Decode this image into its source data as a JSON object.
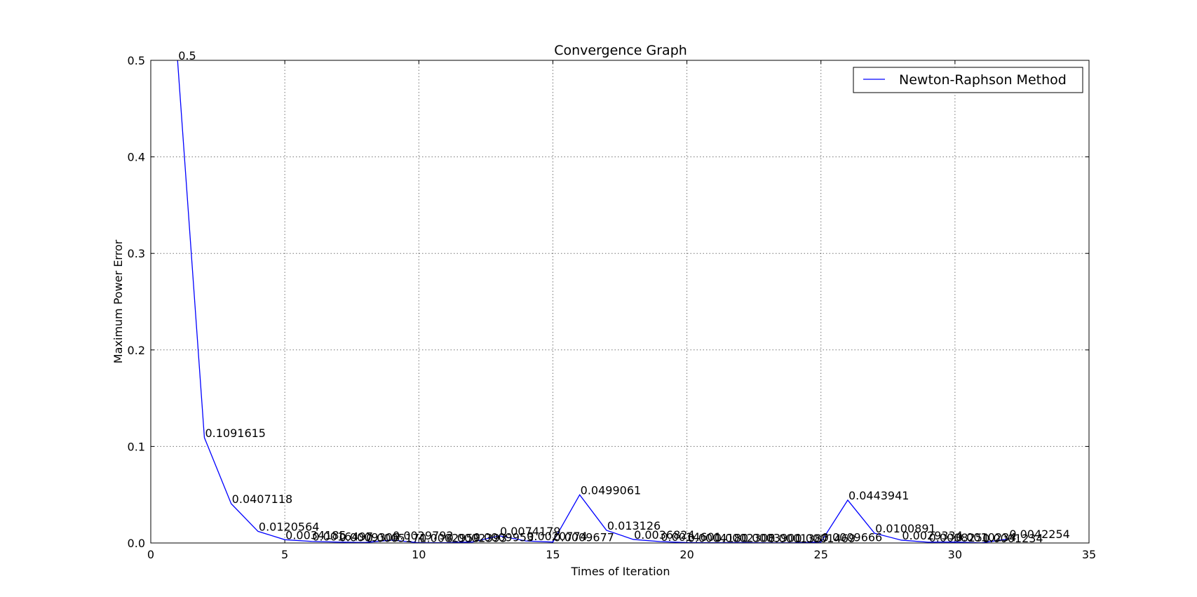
{
  "chart_data": {
    "type": "line",
    "title": "Convergence Graph",
    "xlabel": "Times of Iteration",
    "ylabel": "Maximum Power Error",
    "xlim": [
      0,
      35
    ],
    "ylim": [
      0,
      0.5
    ],
    "x_ticks": [
      "0",
      "5",
      "10",
      "15",
      "20",
      "25",
      "30",
      "35"
    ],
    "y_ticks": [
      "0.0",
      "0.1",
      "0.2",
      "0.3",
      "0.4",
      "0.5"
    ],
    "grid": true,
    "legend_position": "top-right",
    "series": [
      {
        "name": "Newton-Raphson Method",
        "color": "#0000ff",
        "x": [
          1,
          2,
          3,
          4,
          5,
          6,
          7,
          8,
          9,
          10,
          11,
          12,
          13,
          14,
          15,
          16,
          17,
          18,
          19,
          20,
          21,
          22,
          23,
          24,
          25,
          26,
          27,
          28,
          29,
          30,
          31,
          32
        ],
        "y": [
          0.5,
          0.1091615,
          0.0407118,
          0.0120564,
          0.0034185,
          0.0016497,
          0.0009308,
          0.0005171,
          0.0029792,
          0.0002959,
          0.0002393,
          0.0009953,
          0.0074179,
          0.0020774,
          0.0009677,
          0.0499061,
          0.013126,
          0.0036824,
          0.0014601,
          0.0004181,
          0.0002308,
          0.0003901,
          0.0001387,
          0.0001469,
          0.0009666,
          0.0443941,
          0.0100891,
          0.0029334,
          0.0008251,
          0.0010234,
          0.0001234,
          0.0042254
        ],
        "labels": [
          "0.5",
          "0.1091615",
          "0.0407118",
          "0.0120564",
          "0.0034185",
          "0.0016497",
          "0.0009308",
          "0.0005171",
          "0.0029792",
          "0.0002959",
          "0.0002393",
          "0.0009953",
          "0.0074179",
          "0.0020774",
          "0.0009677",
          "0.0499061",
          "0.013126",
          "0.0036824",
          "0.0014601",
          "0.0004181",
          "0.0002308",
          "0.0003901",
          "0.0001387",
          "0.0001469",
          "0.0009666",
          "0.0443941",
          "0.0100891",
          "0.0029334",
          "0.0008251",
          "0.0010234",
          "0.0001234",
          "0.0042254"
        ]
      }
    ]
  }
}
